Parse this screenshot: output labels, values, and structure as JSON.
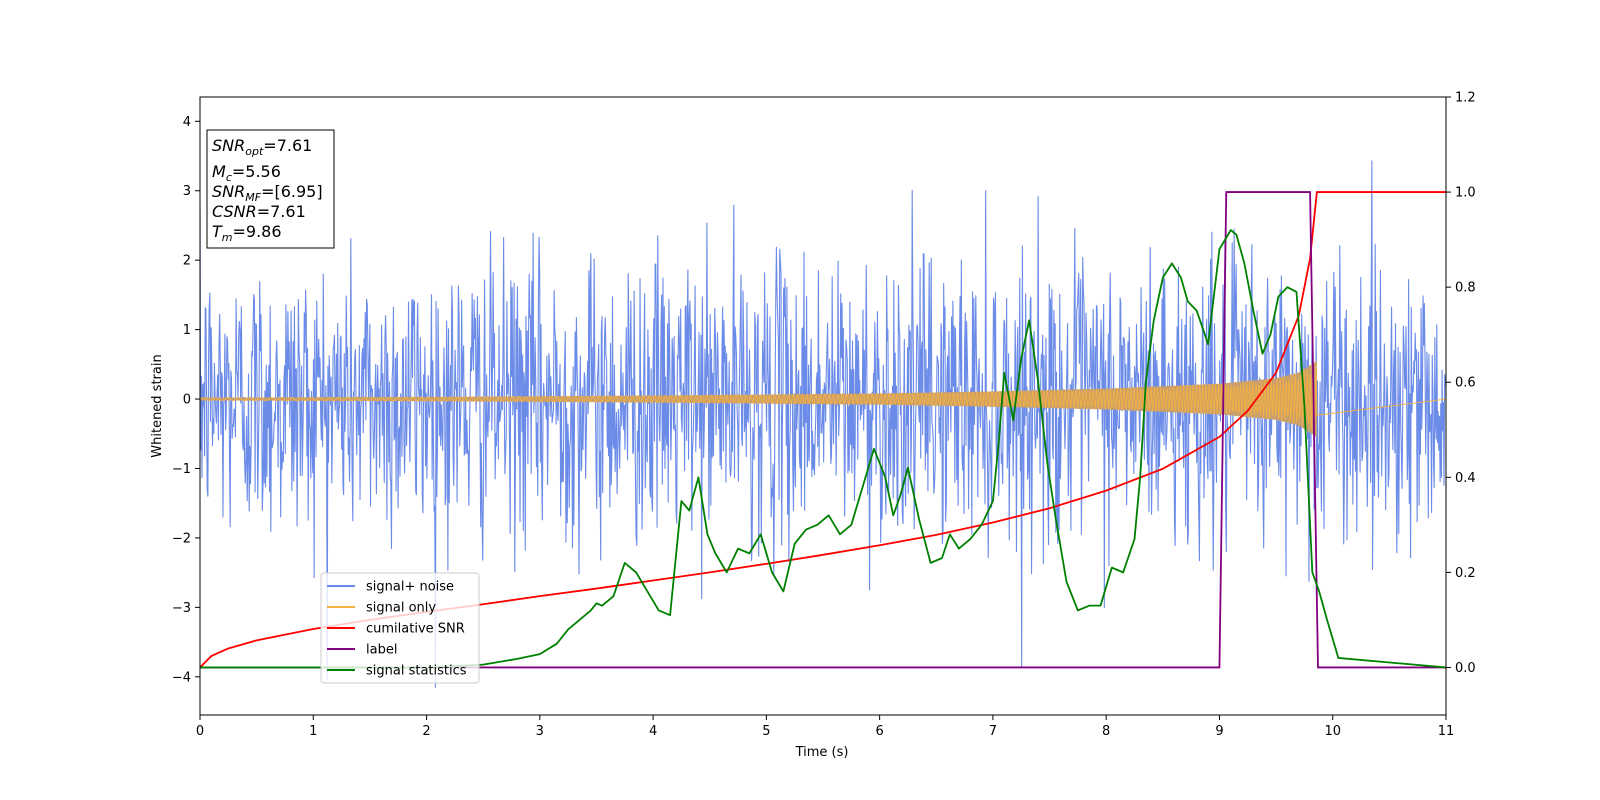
{
  "chart_data": {
    "type": "line",
    "xlabel": "Time (s)",
    "ylabel": "Whitened strain",
    "xlim": [
      0,
      11
    ],
    "ylim": [
      -4.55,
      4.35
    ],
    "y2lim": [
      -0.1,
      1.2
    ],
    "xticks": [
      0,
      1,
      2,
      3,
      4,
      5,
      6,
      7,
      8,
      9,
      10,
      11
    ],
    "yticks": [
      -4,
      -3,
      -2,
      -1,
      0,
      1,
      2,
      3,
      4
    ],
    "y2ticks": [
      "0.0",
      "0.2",
      "0.4",
      "0.6",
      "0.8",
      "1.0",
      "1.2"
    ],
    "grid": false,
    "legend_position": "lower-left",
    "colors": {
      "signal_noise": "#6b8be8",
      "signal_only": "#f5b041",
      "signal_envelope_fill": "#c9a06b",
      "cumulative_snr": "#ff0000",
      "label": "#800080",
      "signal_statistics": "#008000"
    },
    "annotation_lines": [
      {
        "base": "SNR",
        "sub": "opt",
        "value": "=7.61"
      },
      {
        "base": "M",
        "sub": "c",
        "value": "=5.56"
      },
      {
        "base": "SNR",
        "sub": "MF",
        "value": "=[6.95]"
      },
      {
        "base": "CSNR",
        "sub": "",
        "value": "=7.61"
      },
      {
        "base": "T",
        "sub": "m",
        "value": "=9.86"
      }
    ],
    "series": [
      {
        "name": "signal+ noise",
        "axis": "left",
        "style": "noise",
        "duration": 11,
        "sigma": 1.0,
        "max": 3.95,
        "min": -4.15
      },
      {
        "name": "signal only",
        "axis": "left",
        "style": "chirp",
        "t_merge": 9.86,
        "envelope": [
          [
            0,
            0.02
          ],
          [
            2,
            0.03
          ],
          [
            4,
            0.05
          ],
          [
            6,
            0.08
          ],
          [
            7,
            0.11
          ],
          [
            8,
            0.15
          ],
          [
            9,
            0.22
          ],
          [
            9.5,
            0.3
          ],
          [
            9.7,
            0.38
          ],
          [
            9.86,
            0.55
          ]
        ]
      },
      {
        "name": "cumilative SNR",
        "axis": "right",
        "x": [
          0,
          0.1,
          0.25,
          0.5,
          1,
          1.5,
          2,
          2.5,
          3,
          3.5,
          4,
          4.5,
          5,
          5.5,
          6,
          6.5,
          7,
          7.5,
          8,
          8.5,
          9,
          9.25,
          9.5,
          9.7,
          9.8,
          9.86,
          10,
          11
        ],
        "y": [
          0,
          0.024,
          0.04,
          0.057,
          0.081,
          0.1,
          0.117,
          0.133,
          0.15,
          0.166,
          0.183,
          0.2,
          0.218,
          0.237,
          0.257,
          0.279,
          0.305,
          0.335,
          0.372,
          0.418,
          0.485,
          0.54,
          0.62,
          0.74,
          0.86,
          1.0,
          1.0,
          1.0
        ]
      },
      {
        "name": "label",
        "axis": "right",
        "x": [
          0,
          9.0,
          9.06,
          9.8,
          9.87,
          11
        ],
        "y": [
          0,
          0,
          1,
          1,
          0,
          0
        ]
      },
      {
        "name": "signal statistics",
        "axis": "right",
        "x": [
          0,
          2.0,
          2.5,
          2.8,
          3.0,
          3.15,
          3.25,
          3.35,
          3.45,
          3.5,
          3.55,
          3.65,
          3.75,
          3.85,
          3.95,
          4.05,
          4.15,
          4.25,
          4.32,
          4.4,
          4.48,
          4.55,
          4.65,
          4.75,
          4.85,
          4.95,
          5.05,
          5.15,
          5.25,
          5.35,
          5.45,
          5.55,
          5.65,
          5.75,
          5.85,
          5.95,
          6.05,
          6.12,
          6.18,
          6.25,
          6.35,
          6.45,
          6.55,
          6.62,
          6.7,
          6.8,
          6.9,
          7.0,
          7.05,
          7.1,
          7.18,
          7.25,
          7.32,
          7.4,
          7.48,
          7.55,
          7.65,
          7.75,
          7.85,
          7.95,
          8.05,
          8.15,
          8.25,
          8.3,
          8.35,
          8.42,
          8.5,
          8.58,
          8.66,
          8.72,
          8.8,
          8.9,
          9.0,
          9.1,
          9.15,
          9.22,
          9.3,
          9.38,
          9.45,
          9.52,
          9.6,
          9.68,
          9.75,
          9.82,
          9.88,
          9.95,
          10.05,
          11
        ],
        "y": [
          0,
          0,
          0.006,
          0.018,
          0.028,
          0.05,
          0.08,
          0.1,
          0.12,
          0.135,
          0.13,
          0.15,
          0.22,
          0.2,
          0.16,
          0.12,
          0.11,
          0.35,
          0.33,
          0.4,
          0.28,
          0.24,
          0.2,
          0.25,
          0.24,
          0.28,
          0.2,
          0.16,
          0.26,
          0.29,
          0.3,
          0.32,
          0.28,
          0.3,
          0.38,
          0.46,
          0.4,
          0.32,
          0.36,
          0.42,
          0.31,
          0.22,
          0.23,
          0.28,
          0.25,
          0.27,
          0.3,
          0.35,
          0.47,
          0.62,
          0.52,
          0.65,
          0.73,
          0.6,
          0.43,
          0.32,
          0.18,
          0.12,
          0.13,
          0.13,
          0.21,
          0.2,
          0.27,
          0.4,
          0.6,
          0.73,
          0.82,
          0.85,
          0.82,
          0.77,
          0.75,
          0.68,
          0.88,
          0.92,
          0.91,
          0.85,
          0.75,
          0.66,
          0.7,
          0.78,
          0.8,
          0.79,
          0.55,
          0.2,
          0.16,
          0.1,
          0.02,
          0
        ]
      }
    ]
  }
}
